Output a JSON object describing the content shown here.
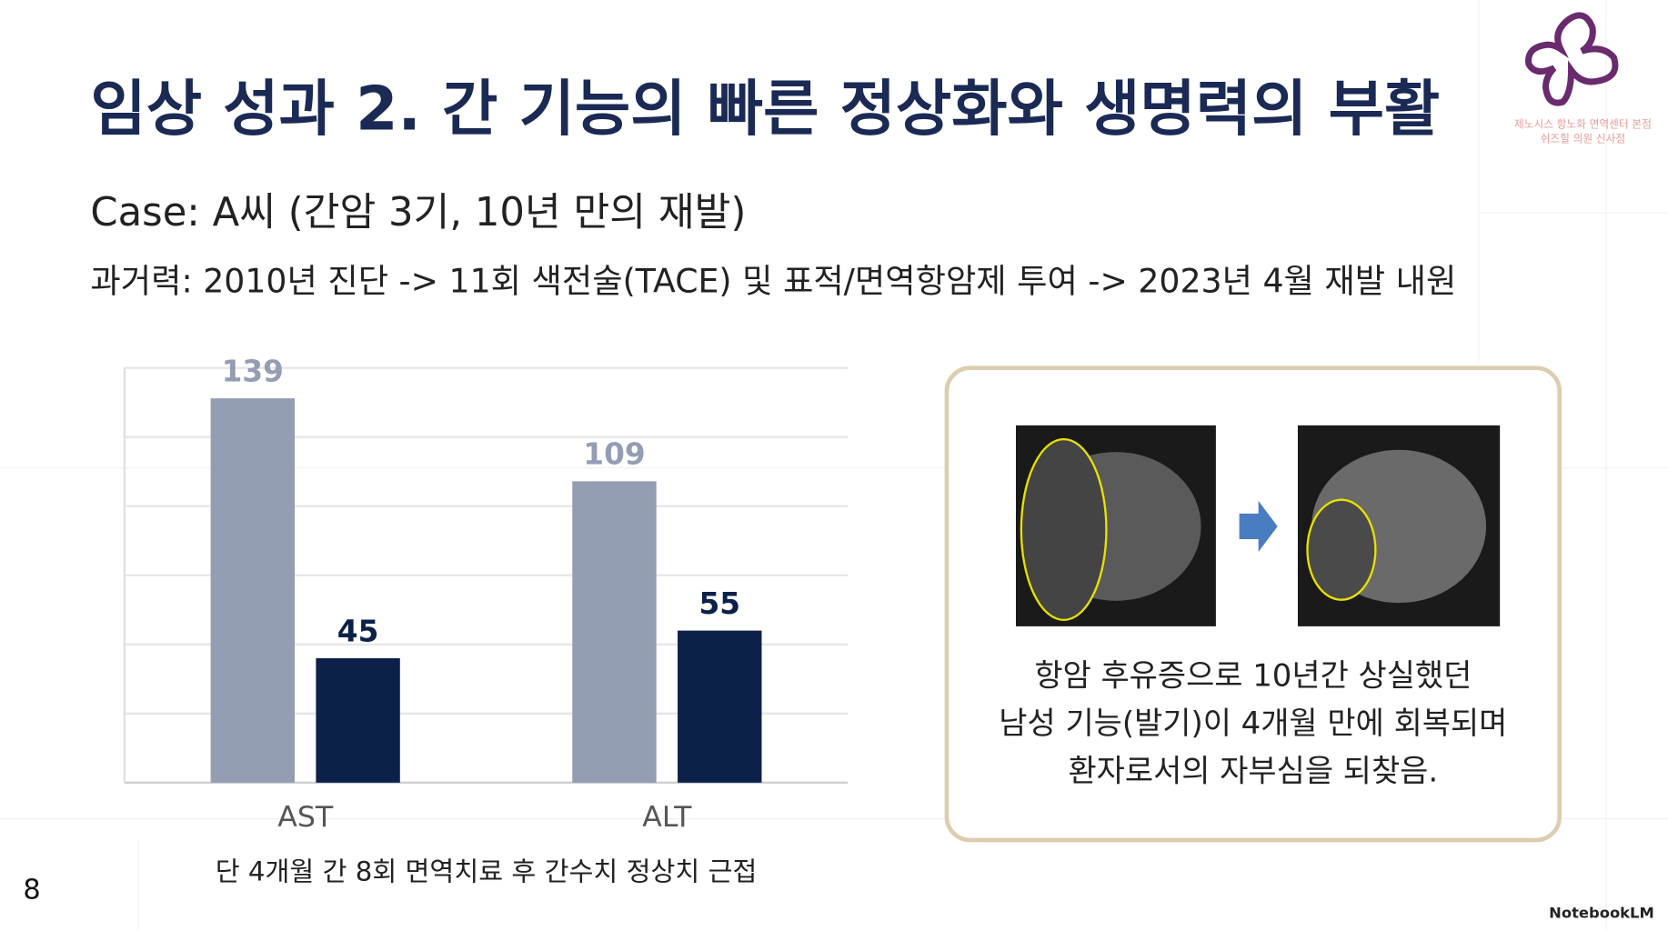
{
  "header": {
    "title": "임상 성과 2. 간 기능의 빠른 정상화와 생명력의 부활",
    "case": "Case: A씨 (간암 3기, 10년 만의 재발)",
    "history": "과거력: 2010년 진단 -> 11회 색전술(TACE) 및 표적/면역항암제 투여 -> 2023년 4월 재발 내원"
  },
  "chart_data": {
    "type": "bar",
    "categories": [
      "AST",
      "ALT"
    ],
    "series": [
      {
        "color": "#939db3",
        "values": [
          139,
          109
        ]
      },
      {
        "color": "#0c2149",
        "values": [
          45,
          55
        ]
      }
    ],
    "ylim": [
      0,
      150
    ],
    "yticks": [
      0,
      25,
      50,
      75,
      100,
      125,
      150
    ],
    "grid": true,
    "caption": "단 4개월 간 8회 면역치료 후 간수치 정상치 근접"
  },
  "panel": {
    "lines": [
      "항암 후유증으로 10년간 상실했던",
      "남성 기능(발기)이 4개월 만에 회복되며",
      "환자로서의 자부심을 되찾음."
    ]
  },
  "logo": {
    "lines": [
      "제노시스 항노화 면역센터 본점",
      "쉬즈힐 의원 신사점"
    ]
  },
  "page_number": 8,
  "watermark": "NotebookLM"
}
